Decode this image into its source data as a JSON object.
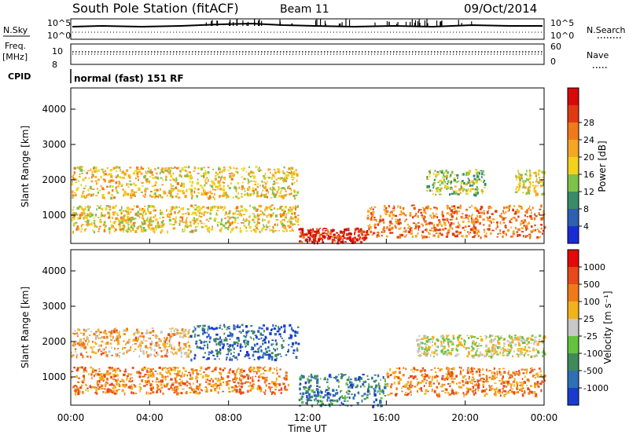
{
  "header": {
    "station": "South Pole Station (fitACF)",
    "beam": "Beam 11",
    "date": "09/Oct/2014"
  },
  "top_panels": {
    "nsky_label": "N.Sky",
    "nsearch_label": "N.Search",
    "noise_tick_high": "10^5",
    "noise_tick_low": "10^0",
    "freq_label_line1": "Freq.",
    "freq_label_line2": "[MHz]",
    "freq_ticks": [
      "10",
      "8"
    ],
    "nave_label": "Nave",
    "nave_ticks": [
      "60",
      "0"
    ],
    "cpid_label": "CPID",
    "cpid_text": "normal (fast) 151 RF"
  },
  "chart_data": [
    {
      "type": "heatmap",
      "name": "power",
      "xlabel": "",
      "ylabel": "Slant Range [km]",
      "ylim": [
        200,
        4600
      ],
      "yticks": [
        "1000",
        "2000",
        "3000",
        "4000"
      ],
      "colorbar_label": "Power [dB]",
      "colorbar_ticks": [
        "4",
        "8",
        "12",
        "16",
        "20",
        "24",
        "28"
      ],
      "colorbar_colors": [
        "#1a2bd6",
        "#2e5fb0",
        "#3a8a6a",
        "#7fc24a",
        "#f2d21c",
        "#f5a623",
        "#f07a1a",
        "#e03a12",
        "#d60a0a"
      ],
      "regions": [
        {
          "t": [
            0.0,
            11.5
          ],
          "r": [
            1500,
            2400
          ],
          "level": 0.55
        },
        {
          "t": [
            0.0,
            11.5
          ],
          "r": [
            550,
            1300
          ],
          "level": 0.55
        },
        {
          "t": [
            11.5,
            15.0
          ],
          "r": [
            250,
            650
          ],
          "level": 0.95
        },
        {
          "t": [
            15.0,
            24.0
          ],
          "r": [
            400,
            1300
          ],
          "level": 0.75
        },
        {
          "t": [
            18.0,
            21.0
          ],
          "r": [
            1600,
            2300
          ],
          "level": 0.4
        },
        {
          "t": [
            22.5,
            24.0
          ],
          "r": [
            1600,
            2300
          ],
          "level": 0.5
        }
      ]
    },
    {
      "type": "heatmap",
      "name": "velocity",
      "xlabel": "Time UT",
      "ylabel": "Slant Range [km]",
      "ylim": [
        200,
        4600
      ],
      "yticks": [
        "1000",
        "2000",
        "3000",
        "4000"
      ],
      "xticks": [
        "00:00",
        "04:00",
        "08:00",
        "12:00",
        "16:00",
        "20:00",
        "00:00"
      ],
      "colorbar_label": "Velocity [m s⁻¹]",
      "colorbar_ticks": [
        "1000",
        "500",
        "100",
        "25",
        "-25",
        "-100",
        "-500",
        "-1000"
      ],
      "colorbar_colors": [
        "#1a3ccc",
        "#2f6fb4",
        "#3f8a5a",
        "#64c23c",
        "#c8c8c8",
        "#f2b21c",
        "#f07a1a",
        "#e8481a",
        "#e00a0a"
      ],
      "regions": [
        {
          "t": [
            0.0,
            6.0
          ],
          "r": [
            1600,
            2400
          ],
          "level": 0.65
        },
        {
          "t": [
            6.0,
            11.5
          ],
          "r": [
            1500,
            2500
          ],
          "level": 0.1
        },
        {
          "t": [
            0.0,
            11.0
          ],
          "r": [
            550,
            1300
          ],
          "level": 0.75
        },
        {
          "t": [
            11.5,
            16.0
          ],
          "r": [
            200,
            1100
          ],
          "level": 0.2
        },
        {
          "t": [
            16.0,
            24.0
          ],
          "r": [
            500,
            1300
          ],
          "level": 0.75
        },
        {
          "t": [
            17.5,
            24.0
          ],
          "r": [
            1600,
            2200
          ],
          "level": 0.5
        }
      ]
    }
  ]
}
